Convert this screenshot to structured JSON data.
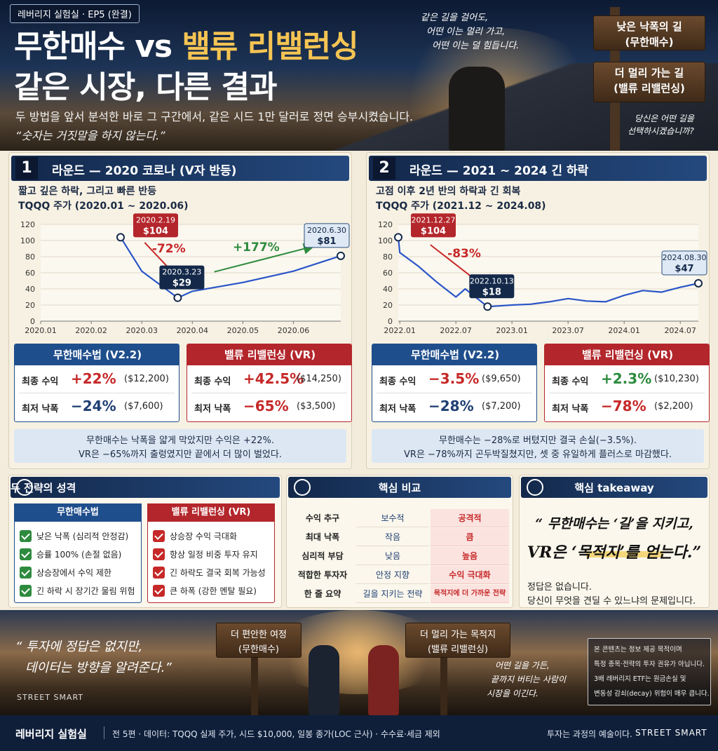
{
  "header": {
    "badge": "레버리지 실험실 · EP5 (완결)",
    "title_part1": "무한매수 vs ",
    "title_highlight": "밸류 리밸런싱",
    "title_line2": "같은 시장, 다른 결과",
    "description": "두 방법을 앞서 분석한 바로 그 구간에서, 같은 시드 1만 달러로 정면 승부시켰습니다.",
    "quote": "“숫자는 거짓말을 하지 않는다.”",
    "poem": [
      "같은 길을 걸어도,",
      "어떤 이는 멀리 가고,",
      "어떤 이는 덜 힘듭니다."
    ],
    "signs": [
      [
        "낮은 낙폭의 길",
        "(무한매수)"
      ],
      [
        "더 멀리 가는 길",
        "(밸류 리밸런싱)"
      ]
    ],
    "question": [
      "당신은 어떤 길을",
      "선택하시겠습니까?"
    ]
  },
  "chart_data": [
    {
      "type": "line",
      "title": "TQQQ 주가 (2020.01 ~ 2020.06)",
      "x": [
        "2020.2.19",
        "2020.03",
        "2020.3.23",
        "2020.04",
        "2020.05",
        "2020.06",
        "2020.6.30"
      ],
      "values": [
        104,
        62,
        29,
        37,
        48,
        62,
        81
      ],
      "value_labels": [
        "$104",
        null,
        "$29",
        null,
        null,
        null,
        "$81"
      ],
      "color": "#2a55c8",
      "ylim": [
        0,
        120
      ],
      "yticks": [
        0,
        20,
        40,
        60,
        80,
        100,
        120
      ],
      "xticks": [
        "2020.01",
        "2020.02",
        "2020.03",
        "2020.04",
        "2020.05",
        "2020.06"
      ],
      "grid": true,
      "annotations": [
        {
          "text": "-72%",
          "color": "#c62828"
        },
        {
          "text": "+177%",
          "color": "#2e8b3e"
        }
      ]
    },
    {
      "type": "line",
      "title": "TQQQ 주가 (2021.12 ~ 2024.08)",
      "x": [
        "2021.12.27",
        "2022.01",
        "2022.03",
        "2022.05",
        "2022.07",
        "2022.08",
        "2022.10.13",
        "2023.01",
        "2023.03",
        "2023.05",
        "2023.07",
        "2023.09",
        "2023.11",
        "2024.01",
        "2024.03",
        "2024.05",
        "2024.07",
        "2024.08.30"
      ],
      "values": [
        104,
        85,
        68,
        48,
        30,
        40,
        18,
        20,
        21,
        24,
        28,
        25,
        24,
        32,
        38,
        36,
        42,
        47
      ],
      "value_labels": [
        "$104",
        null,
        null,
        null,
        null,
        null,
        "$18",
        null,
        null,
        null,
        null,
        null,
        null,
        null,
        null,
        null,
        null,
        "$47"
      ],
      "color": "#2a55c8",
      "ylim": [
        0,
        120
      ],
      "yticks": [
        0,
        20,
        40,
        60,
        80,
        100,
        120
      ],
      "xticks": [
        "2022.01",
        "2022.07",
        "2023.01",
        "2023.07",
        "2024.01",
        "2024.07"
      ],
      "grid": true,
      "annotations": [
        {
          "text": "-83%",
          "color": "#c62828"
        }
      ]
    }
  ],
  "rounds": [
    {
      "number": "1",
      "title": "라운드 — 2020 코로나 (V자 반등)",
      "subtitle": "짧고 깊은 하락, 그리고 빠른 반등",
      "tables": [
        {
          "name": "무한매수법 (V2.2)",
          "color": "#1f4e8c",
          "rows": [
            [
              "최종 수익",
              "+22%",
              "($12,200)"
            ],
            [
              "최저 낙폭",
              "−24%",
              "($7,600)"
            ]
          ],
          "value_colors": [
            "#c62828",
            "#1f3f73"
          ]
        },
        {
          "name": "밸류 리밸런싱 (VR)",
          "color": "#b3262b",
          "rows": [
            [
              "최종 수익",
              "+42.5%",
              "($14,250)"
            ],
            [
              "최저 낙폭",
              "−65%",
              "($3,500)"
            ]
          ],
          "value_colors": [
            "#c62828",
            "#c62828"
          ]
        }
      ],
      "summary": [
        "무한매수는 낙폭을 얇게 막았지만 수익은 +22%.",
        "VR은 −65%까지 출렁였지만 끝에서 더 많이 벌었다."
      ]
    },
    {
      "number": "2",
      "title": "라운드 — 2021 ~ 2024 긴 하락",
      "subtitle": "고점 이후 2년 반의 하락과 긴 회복",
      "tables": [
        {
          "name": "무한매수법 (V2.2)",
          "color": "#1f4e8c",
          "rows": [
            [
              "최종 수익",
              "−3.5%",
              "($9,650)"
            ],
            [
              "최저 낙폭",
              "−28%",
              "($7,200)"
            ]
          ],
          "value_colors": [
            "#c62828",
            "#1f3f73"
          ]
        },
        {
          "name": "밸류 리밸런싱 (VR)",
          "color": "#b3262b",
          "rows": [
            [
              "최종 수익",
              "+2.3%",
              "($10,230)"
            ],
            [
              "최저 낙폭",
              "−78%",
              "($2,200)"
            ]
          ],
          "value_colors": [
            "#2e8b3e",
            "#c62828"
          ]
        }
      ],
      "summary": [
        "무한매수는 −28%로 버텼지만 결국 손실(−3.5%).",
        "VR은 −78%까지 곤두박질쳤지만, 셋 중 유일하게 플러스로 마감했다."
      ]
    }
  ],
  "character": {
    "title": "두 전략의 성격",
    "columns": [
      {
        "name": "무한매수법",
        "color": "#1f4e8c",
        "check_color": "#2e8b3e",
        "items": [
          "낮은 낙폭 (심리적 안정감)",
          "승률 100% (손절 없음)",
          "상승장에서 수익 제한",
          "긴 하락 시 장기간 물림 위험"
        ]
      },
      {
        "name": "밸류 리밸런싱 (VR)",
        "color": "#b3262b",
        "check_color": "#c62828",
        "items": [
          "상승장 수익 극대화",
          "항상 일정 비중 투자 유지",
          "긴 하락도 결국 회복 가능성",
          "큰 하폭 (강한 멘탈 필요)"
        ]
      }
    ]
  },
  "comparison": {
    "title": "핵심 비교",
    "rows": [
      [
        "수익 추구",
        "보수적",
        "공격적"
      ],
      [
        "최대 낙폭",
        "작음",
        "큼"
      ],
      [
        "심리적 부담",
        "낮음",
        "높음"
      ],
      [
        "적합한 투자자",
        "안정 지향",
        "수익 극대화"
      ],
      [
        "한 줄 요약",
        "길을 지키는 전략",
        "목적지에 더 가까운 전략"
      ]
    ]
  },
  "takeaway": {
    "title": "핵심 takeaway",
    "quote": [
      "“ 무한매수는 ‘길’을 지키고,",
      "VR은 ‘목적지’를 얻는다.”"
    ],
    "body": [
      "정답은 없습니다.",
      "당신이 무엇을 견딜 수 있느냐의 문제입니다."
    ]
  },
  "banner": {
    "quote": [
      "“ 투자에 정답은 없지만,",
      "데이터는 방향을 알려준다.”"
    ],
    "brand": "STREET SMART",
    "signs": [
      [
        "더 편안한 여정",
        "(무한매수)"
      ],
      [
        "더 멀리 가는 목적지",
        "(밸류 리밸런싱)"
      ]
    ],
    "poem": [
      "어떤 길을 가든,",
      "끝까지 버티는 사람이",
      "시장을 이긴다."
    ],
    "disclaimer": [
      "본 콘텐츠는 정보 제공 목적이며",
      "특정 종목·전략의 투자 권유가 아닙니다.",
      "3배 레버리지 ETF는 원금손실 및",
      "변동성 감쇠(decay) 위험이 매우 큽니다."
    ]
  },
  "footer": {
    "brand": "레버리지 실험실",
    "info": "전 5편 · 데이터: TQQQ 실제 주가, 시드 $10,000, 일봉 종가(LOC 근사) · 수수료·세금 제외",
    "motto": "투자는 과정의 예술이다.",
    "brand2": "STREET SMART"
  }
}
